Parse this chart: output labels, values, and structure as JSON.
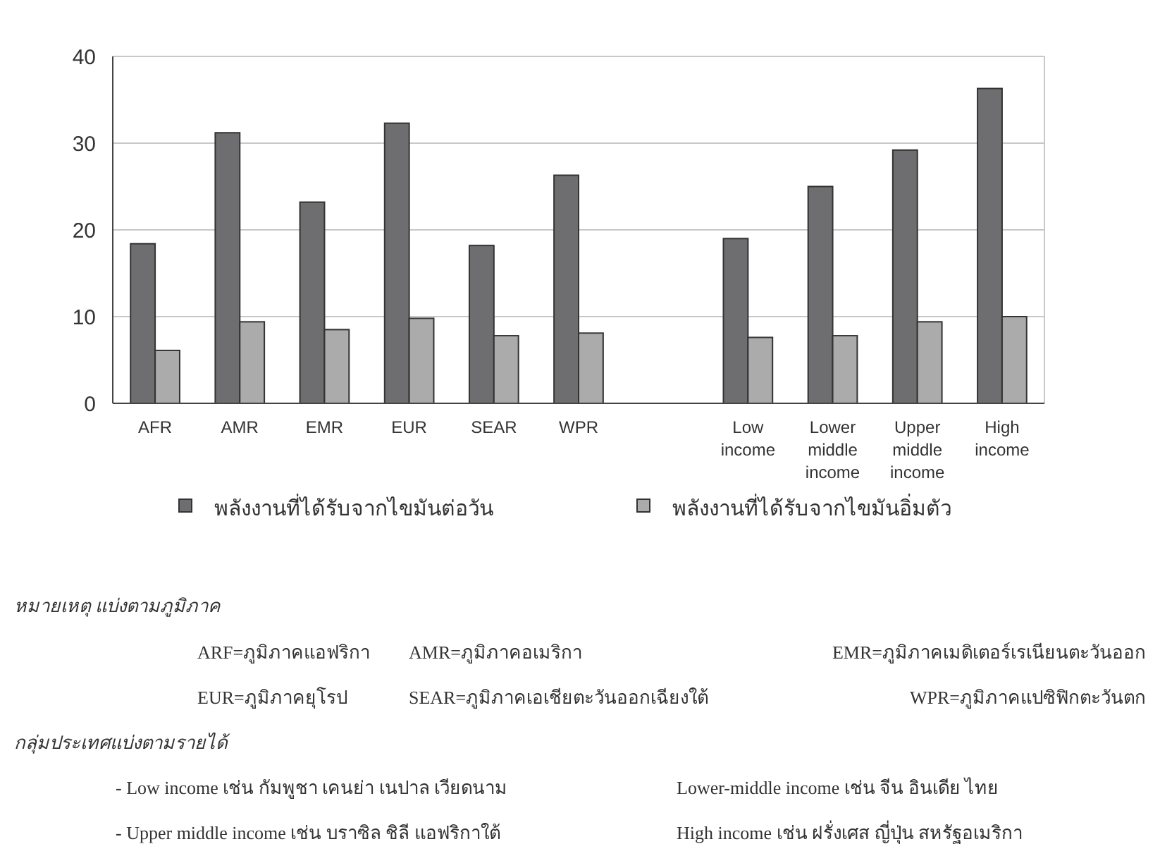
{
  "chart_data": {
    "type": "bar",
    "categories": [
      "AFR",
      "AMR",
      "EMR",
      "EUR",
      "SEAR",
      "WPR",
      null,
      "Low income",
      "Lower middle income",
      "Upper middle income",
      "High income"
    ],
    "series": [
      {
        "name": "พลังงานที่ได้รับจากไขมันต่อวัน",
        "color": "#6e6e70",
        "values": [
          18.4,
          31.2,
          23.2,
          32.3,
          18.2,
          26.3,
          null,
          19.0,
          25.0,
          29.2,
          36.3
        ]
      },
      {
        "name": "พลังงานที่ได้รับจากไขมันอิ่มตัว",
        "color": "#ababab",
        "values": [
          6.1,
          9.4,
          8.5,
          9.8,
          7.8,
          8.1,
          null,
          7.6,
          7.8,
          9.4,
          10.0
        ]
      }
    ],
    "ylim": [
      0,
      40
    ],
    "yticks": [
      0,
      10,
      20,
      30,
      40
    ],
    "grid": "y",
    "legend": "bottom",
    "annotations": [
      "หมายเหตุ แบ่งตามภูมิภาค",
      "ARF=ภูมิภาคแอฟริกา",
      "AMR=ภูมิภาคอเมริกา",
      "EMR=ภูมิภาคเมดิเตอร์เรเนียนตะวันออก",
      "EUR=ภูมิภาคยุโรป",
      "SEAR=ภูมิภาคเอเชียตะวันออกเฉียงใต้",
      "WPR=ภูมิภาคแปซิฟิกตะวันตก",
      "กลุ่มประเทศแบ่งตามรายได้",
      "- Low income เช่น กัมพูชา เคนย่า เนปาล เวียดนาม",
      "Lower-middle income เช่น จีน อินเดีย ไทย",
      "- Upper middle income เช่น บราซิล ชิลี แอฟริกาใต้",
      "High income เช่น ฝรั่งเศส  ญี่ปุ่น สหรัฐอเมริกา"
    ]
  }
}
